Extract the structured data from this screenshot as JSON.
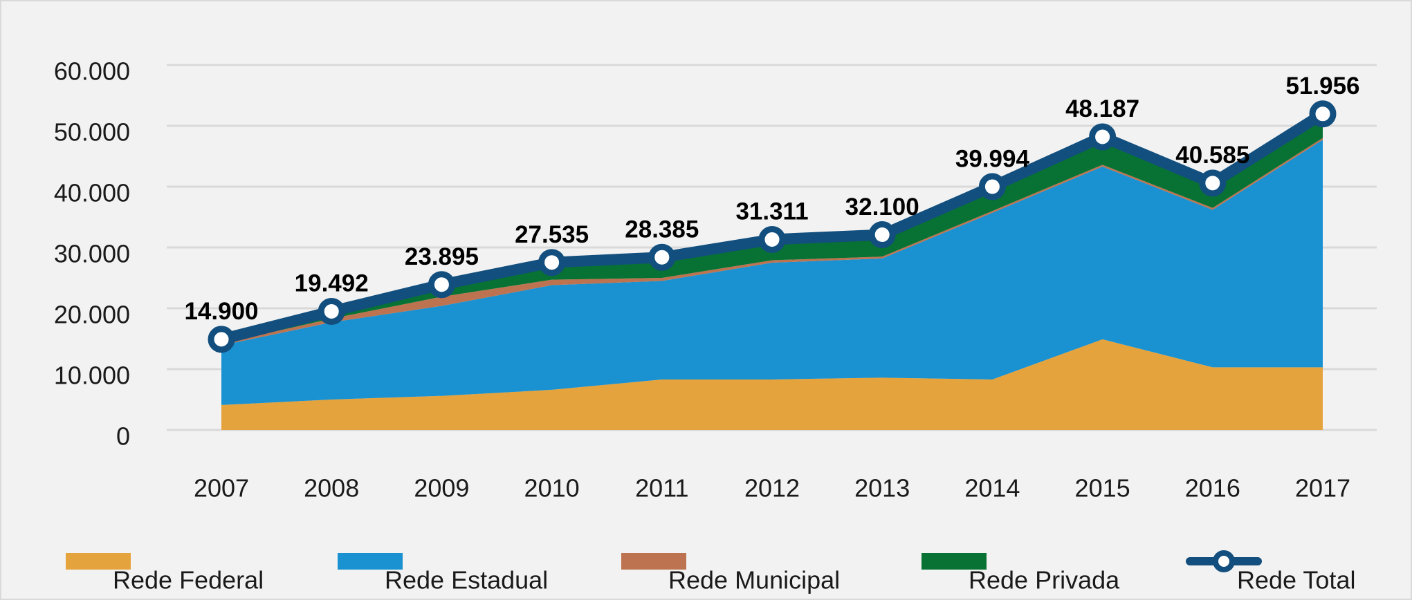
{
  "chart_data": {
    "type": "area",
    "categories": [
      "2007",
      "2008",
      "2009",
      "2010",
      "2011",
      "2012",
      "2013",
      "2014",
      "2015",
      "2016",
      "2017"
    ],
    "series": [
      {
        "name": "Rede Federal",
        "color": "#e5a33d",
        "values": [
          4100,
          5000,
          5600,
          6600,
          8300,
          8300,
          8600,
          8300,
          14900,
          10300,
          10300
        ]
      },
      {
        "name": "Rede Estadual",
        "color": "#1a91d0",
        "values": [
          9800,
          12700,
          14800,
          17200,
          16200,
          19200,
          19600,
          27400,
          28400,
          25900,
          37400
        ]
      },
      {
        "name": "Rede Municipal",
        "color": "#bd7350",
        "values": [
          300,
          600,
          1500,
          900,
          500,
          400,
          300,
          300,
          300,
          300,
          300
        ]
      },
      {
        "name": "Rede Privada",
        "color": "#077233",
        "values": [
          700,
          1200,
          2000,
          2800,
          3400,
          3400,
          3600,
          4000,
          4600,
          4100,
          4000
        ]
      },
      {
        "name": "Rede Total",
        "color": "#124f7e",
        "type": "line",
        "values": [
          14900,
          19492,
          23895,
          27535,
          28385,
          31311,
          32100,
          39994,
          48187,
          40585,
          51956
        ],
        "value_labels": [
          "14.900",
          "19.492",
          "23.895",
          "27.535",
          "28.385",
          "31.311",
          "32.100",
          "39.994",
          "48.187",
          "40.585",
          "51.956"
        ]
      }
    ],
    "ylim": [
      0,
      60000
    ],
    "yticks": [
      0,
      {
        "value": 10000,
        "label": "10.000"
      },
      {
        "value": 20000,
        "label": "20.000"
      },
      {
        "value": 30000,
        "label": "30.000"
      },
      {
        "value": 40000,
        "label": "40.000"
      },
      {
        "value": 50000,
        "label": "50.000"
      },
      {
        "value": 60000,
        "label": "60.000"
      }
    ],
    "grid": true,
    "legend": "bottom"
  }
}
